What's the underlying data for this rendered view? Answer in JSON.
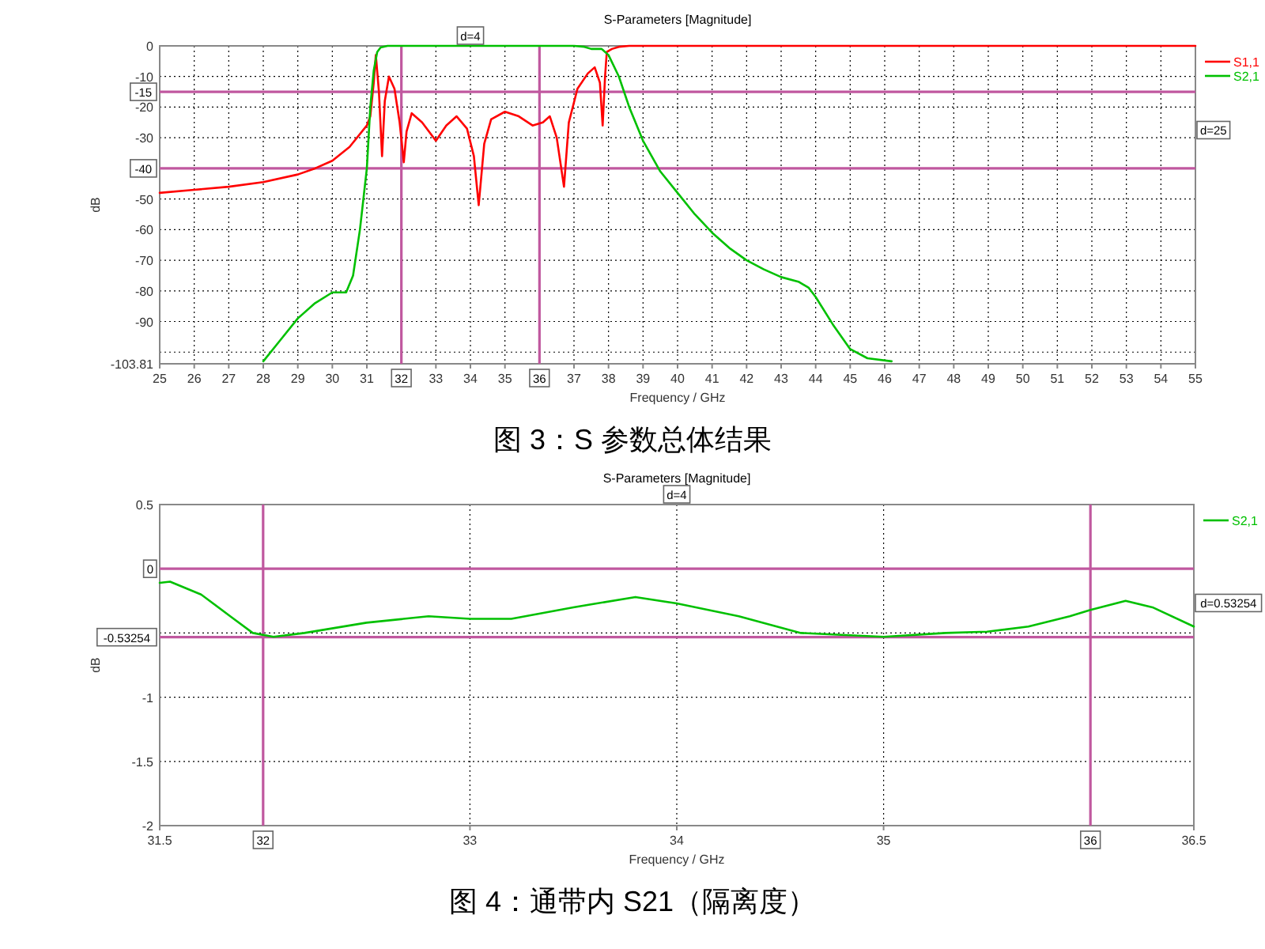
{
  "chart_data": [
    {
      "type": "line",
      "title": "S-Parameters [Magnitude]",
      "xlabel": "Frequency / GHz",
      "ylabel": "dB",
      "xlim": [
        25,
        55
      ],
      "xticks": [
        25,
        26,
        27,
        28,
        29,
        30,
        31,
        33,
        34,
        35,
        37,
        38,
        39,
        40,
        41,
        42,
        43,
        44,
        45,
        46,
        47,
        48,
        49,
        50,
        51,
        52,
        53,
        54,
        55
      ],
      "ylim": [
        -103.81,
        0
      ],
      "yticks": [
        0,
        -10,
        -20,
        -30,
        -50,
        -60,
        -70,
        -80,
        -90,
        {
          "value": -100,
          "label": null
        },
        -103.81
      ],
      "grid": true,
      "legend": "right",
      "series": [
        {
          "name": "S1,1",
          "color": "#ff0000",
          "x": [
            25,
            26,
            27,
            28,
            29,
            29.5,
            30,
            30.5,
            31,
            31.1,
            31.2,
            31.26,
            31.35,
            31.44,
            31.52,
            31.64,
            31.8,
            31.95,
            32.07,
            32.15,
            32.3,
            32.6,
            33.0,
            33.3,
            33.6,
            33.9,
            34.1,
            34.24,
            34.4,
            34.6,
            35.0,
            35.4,
            35.8,
            36.1,
            36.3,
            36.5,
            36.71,
            36.85,
            37.1,
            37.4,
            37.6,
            37.75,
            37.83,
            37.9,
            37.95,
            38.1,
            38.3,
            38.6,
            40,
            45,
            50,
            55
          ],
          "values": [
            -48,
            -47,
            -46,
            -44.5,
            -42,
            -40,
            -37.5,
            -33,
            -26,
            -23,
            -12,
            -3,
            -15,
            -36,
            -18,
            -10,
            -14,
            -25,
            -38,
            -28,
            -22,
            -25,
            -31,
            -26,
            -23,
            -27,
            -36,
            -52,
            -32,
            -24,
            -21.5,
            -23,
            -26,
            -25,
            -23,
            -30,
            -46,
            -25,
            -14,
            -9,
            -7,
            -12,
            -26,
            -10,
            -2,
            -1,
            -0.3,
            0,
            0,
            0,
            0,
            0
          ]
        },
        {
          "name": "S2,1",
          "color": "#00c000",
          "x": [
            28,
            28.5,
            29,
            29.5,
            30,
            30.4,
            30.6,
            30.8,
            31,
            31.1,
            31.2,
            31.3,
            31.4,
            31.6,
            32,
            34,
            36,
            37,
            37.3,
            37.5,
            37.8,
            38,
            38.3,
            38.6,
            39,
            39.5,
            40,
            40.5,
            41,
            41.5,
            42,
            42.5,
            43,
            43.5,
            43.8,
            44,
            44.5,
            45,
            45.5,
            46.2
          ],
          "values": [
            -103,
            -96,
            -89,
            -84,
            -80.5,
            -80.5,
            -75,
            -60,
            -40,
            -20,
            -8,
            -2,
            -0.5,
            0,
            0,
            0,
            0,
            0,
            -0.3,
            -1,
            -1,
            -3,
            -10,
            -20,
            -31,
            -41,
            -48,
            -55,
            -61,
            -66,
            -70,
            -73,
            -75.5,
            -77,
            -79,
            -82,
            -91,
            -99,
            -102,
            -103
          ]
        }
      ],
      "ref_lines": [
        {
          "axis": "y",
          "value": -15,
          "label": "-15",
          "color": "#c0589f"
        },
        {
          "axis": "y",
          "value": -40,
          "label": "-40",
          "color": "#c0589f"
        },
        {
          "axis": "x",
          "value": 32,
          "label": "32",
          "color": "#c0589f"
        },
        {
          "axis": "x",
          "value": 36,
          "label": "36",
          "color": "#c0589f"
        }
      ],
      "annotations": [
        "d=4",
        "d=25",
        "图 3：S 参数总体结果"
      ]
    },
    {
      "type": "line",
      "title": "S-Parameters [Magnitude]",
      "xlabel": "Frequency / GHz",
      "ylabel": "dB",
      "xlim": [
        31.5,
        36.5
      ],
      "xticks": [
        31.5,
        33,
        34,
        35,
        36.5
      ],
      "ylim": [
        -2,
        0.5
      ],
      "yticks": [
        0.5,
        {
          "value": -0.5,
          "label": null
        },
        -1,
        -1.5,
        -2
      ],
      "grid": true,
      "legend": "right",
      "series": [
        {
          "name": "S2,1",
          "color": "#00c000",
          "x": [
            31.5,
            31.55,
            31.7,
            31.85,
            31.95,
            32.05,
            32.2,
            32.5,
            32.8,
            33.0,
            33.2,
            33.5,
            33.8,
            34.0,
            34.3,
            34.6,
            35.0,
            35.3,
            35.5,
            35.7,
            35.9,
            36.0,
            36.17,
            36.3,
            36.5
          ],
          "values": [
            -0.11,
            -0.1,
            -0.2,
            -0.38,
            -0.5,
            -0.53,
            -0.5,
            -0.42,
            -0.37,
            -0.39,
            -0.39,
            -0.3,
            -0.22,
            -0.27,
            -0.37,
            -0.5,
            -0.53,
            -0.5,
            -0.49,
            -0.45,
            -0.37,
            -0.32,
            -0.25,
            -0.3,
            -0.45
          ]
        }
      ],
      "ref_lines": [
        {
          "axis": "y",
          "value": 0,
          "label": "0",
          "color": "#c0589f"
        },
        {
          "axis": "y",
          "value": -0.53254,
          "label": "-0.53254",
          "color": "#c0589f"
        },
        {
          "axis": "x",
          "value": 32,
          "label": "32",
          "color": "#c0589f"
        },
        {
          "axis": "x",
          "value": 36,
          "label": "36",
          "color": "#c0589f"
        }
      ],
      "annotations": [
        "d=4",
        "d=0.53254",
        "图 4：通带内 S21（隔离度）"
      ]
    }
  ]
}
